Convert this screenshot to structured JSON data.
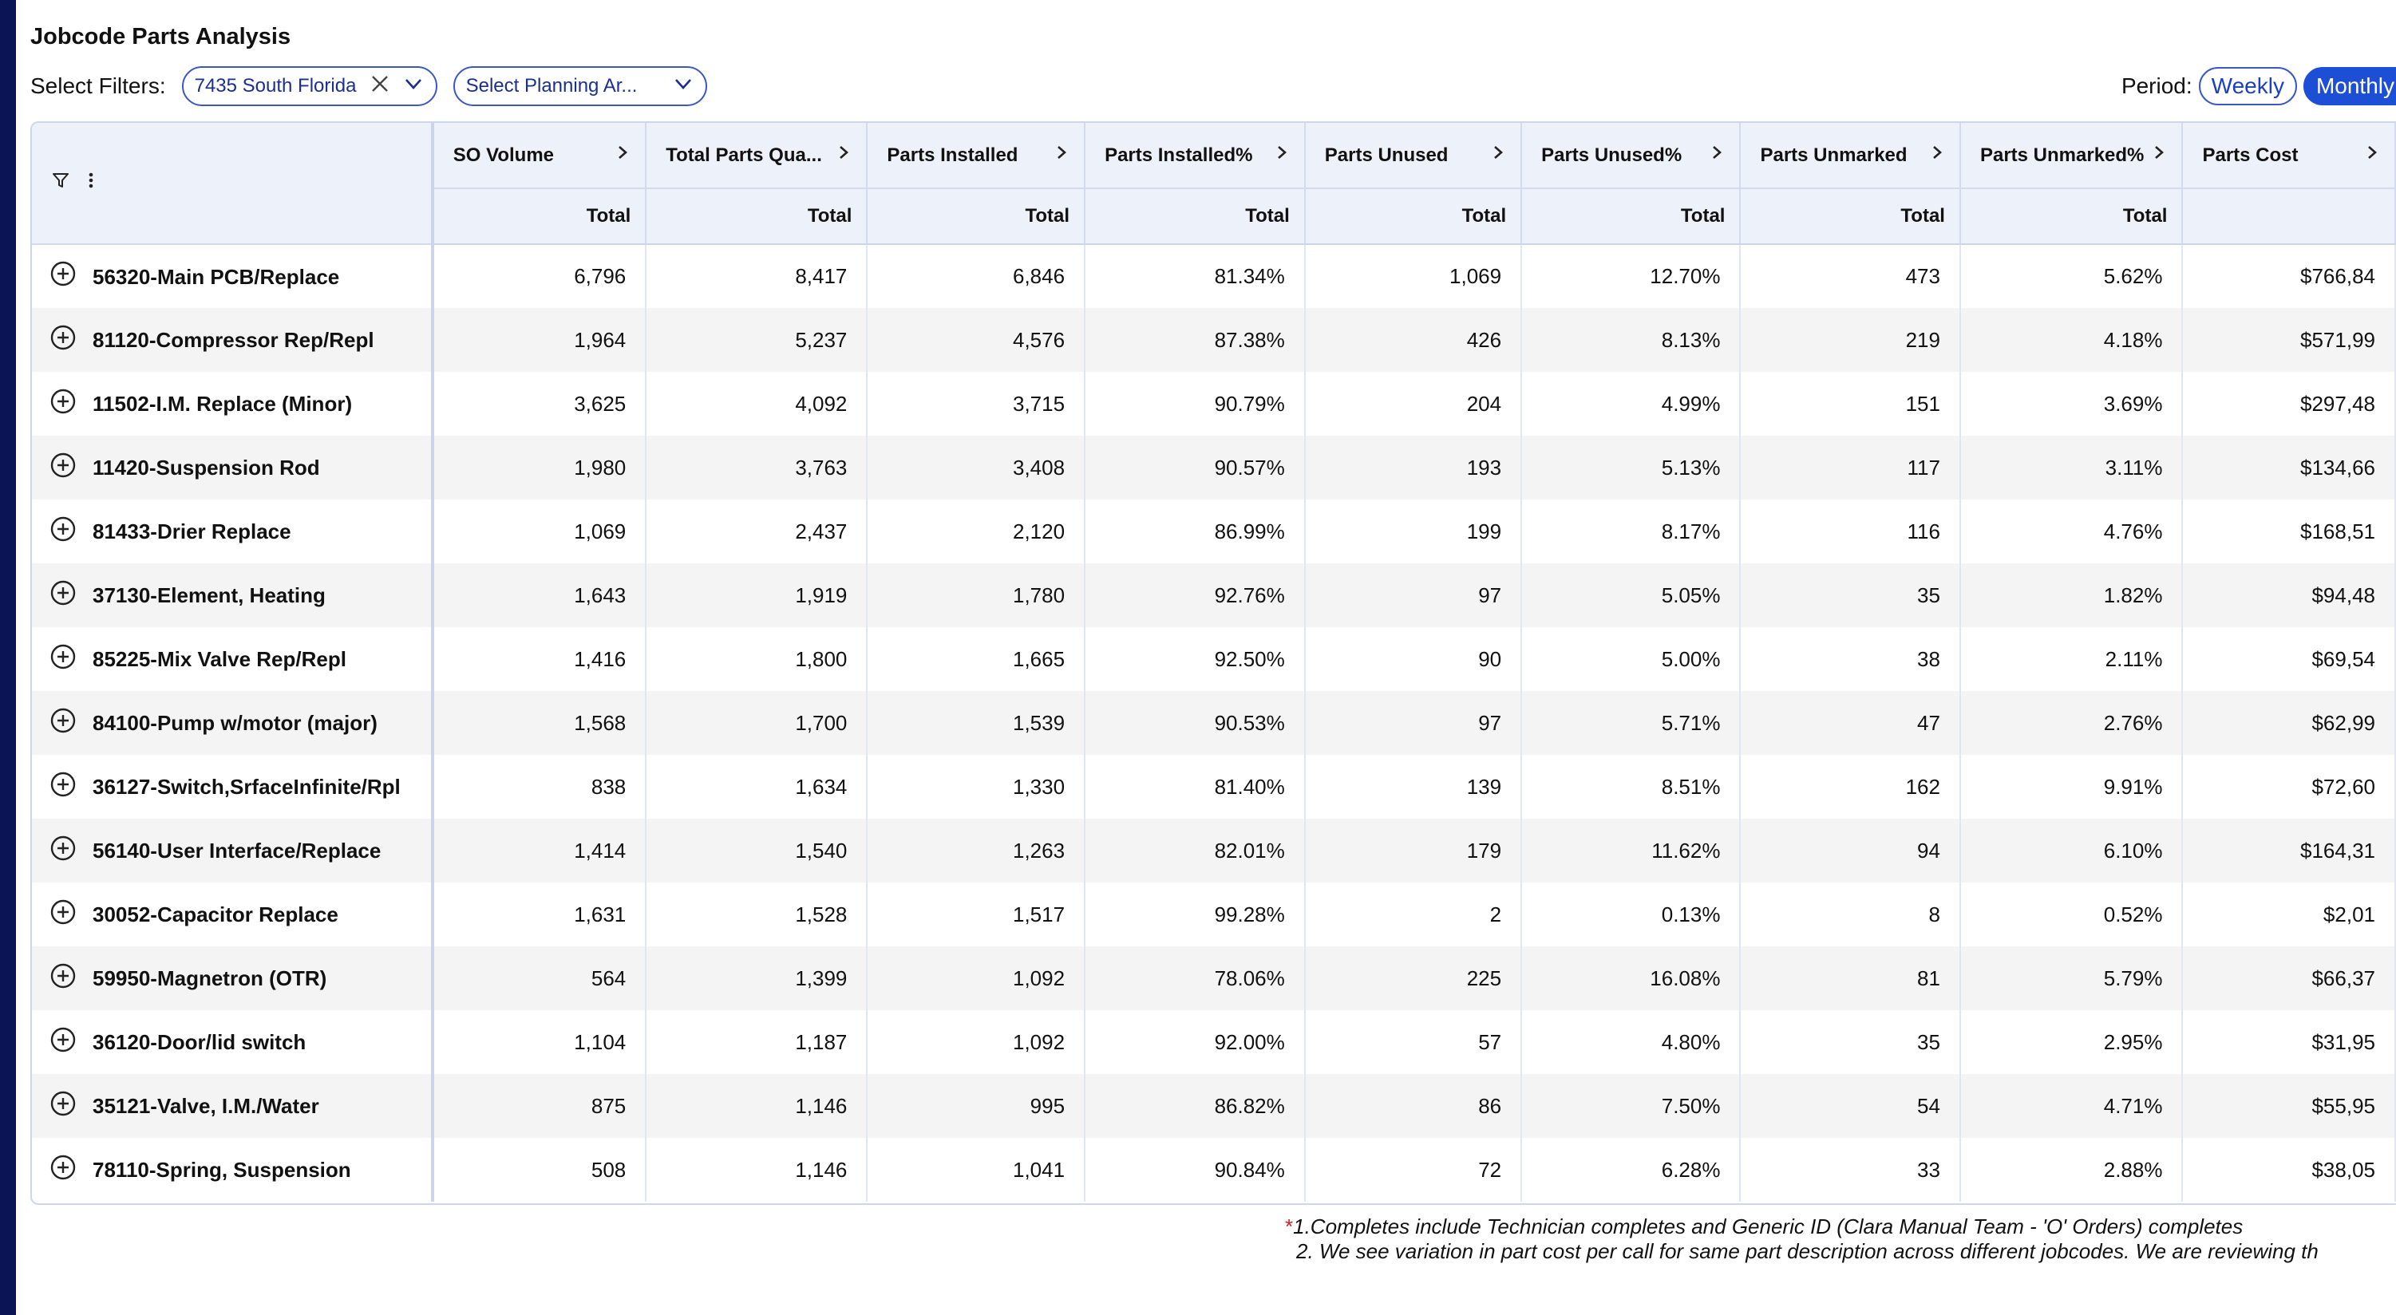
{
  "page": {
    "title": "Jobcode Parts Analysis"
  },
  "filters": {
    "label": "Select Filters:",
    "location": {
      "value": "7435 South Florida"
    },
    "planning_area": {
      "placeholder": "Select Planning Ar..."
    }
  },
  "period": {
    "label": "Period:",
    "options": [
      "Weekly",
      "Monthly"
    ],
    "selected": "Monthly"
  },
  "table": {
    "columns": [
      {
        "label": "SO Volume",
        "sub": "Total"
      },
      {
        "label": "Total Parts Qua...",
        "sub": "Total"
      },
      {
        "label": "Parts Installed",
        "sub": "Total"
      },
      {
        "label": "Parts Installed%",
        "sub": "Total"
      },
      {
        "label": "Parts Unused",
        "sub": "Total"
      },
      {
        "label": "Parts Unused%",
        "sub": "Total"
      },
      {
        "label": "Parts Unmarked",
        "sub": "Total"
      },
      {
        "label": "Parts Unmarked%",
        "sub": "Total"
      },
      {
        "label": "Parts Cost",
        "sub": ""
      }
    ],
    "rows": [
      {
        "jobcode": "56320-Main PCB/Replace",
        "values": [
          "6,796",
          "8,417",
          "6,846",
          "81.34%",
          "1,069",
          "12.70%",
          "473",
          "5.62%",
          "$766,84"
        ]
      },
      {
        "jobcode": "81120-Compressor Rep/Repl",
        "values": [
          "1,964",
          "5,237",
          "4,576",
          "87.38%",
          "426",
          "8.13%",
          "219",
          "4.18%",
          "$571,99"
        ]
      },
      {
        "jobcode": "11502-I.M. Replace (Minor)",
        "values": [
          "3,625",
          "4,092",
          "3,715",
          "90.79%",
          "204",
          "4.99%",
          "151",
          "3.69%",
          "$297,48"
        ]
      },
      {
        "jobcode": "11420-Suspension Rod",
        "values": [
          "1,980",
          "3,763",
          "3,408",
          "90.57%",
          "193",
          "5.13%",
          "117",
          "3.11%",
          "$134,66"
        ]
      },
      {
        "jobcode": "81433-Drier Replace",
        "values": [
          "1,069",
          "2,437",
          "2,120",
          "86.99%",
          "199",
          "8.17%",
          "116",
          "4.76%",
          "$168,51"
        ]
      },
      {
        "jobcode": "37130-Element, Heating",
        "values": [
          "1,643",
          "1,919",
          "1,780",
          "92.76%",
          "97",
          "5.05%",
          "35",
          "1.82%",
          "$94,48"
        ]
      },
      {
        "jobcode": "85225-Mix Valve Rep/Repl",
        "values": [
          "1,416",
          "1,800",
          "1,665",
          "92.50%",
          "90",
          "5.00%",
          "38",
          "2.11%",
          "$69,54"
        ]
      },
      {
        "jobcode": "84100-Pump w/motor (major)",
        "values": [
          "1,568",
          "1,700",
          "1,539",
          "90.53%",
          "97",
          "5.71%",
          "47",
          "2.76%",
          "$62,99"
        ]
      },
      {
        "jobcode": "36127-Switch,SrfaceInfinite/Rpl",
        "values": [
          "838",
          "1,634",
          "1,330",
          "81.40%",
          "139",
          "8.51%",
          "162",
          "9.91%",
          "$72,60"
        ]
      },
      {
        "jobcode": "56140-User Interface/Replace",
        "values": [
          "1,414",
          "1,540",
          "1,263",
          "82.01%",
          "179",
          "11.62%",
          "94",
          "6.10%",
          "$164,31"
        ]
      },
      {
        "jobcode": "30052-Capacitor Replace",
        "values": [
          "1,631",
          "1,528",
          "1,517",
          "99.28%",
          "2",
          "0.13%",
          "8",
          "0.52%",
          "$2,01"
        ]
      },
      {
        "jobcode": "59950-Magnetron (OTR)",
        "values": [
          "564",
          "1,399",
          "1,092",
          "78.06%",
          "225",
          "16.08%",
          "81",
          "5.79%",
          "$66,37"
        ]
      },
      {
        "jobcode": "36120-Door/lid switch",
        "values": [
          "1,104",
          "1,187",
          "1,092",
          "92.00%",
          "57",
          "4.80%",
          "35",
          "2.95%",
          "$31,95"
        ]
      },
      {
        "jobcode": "35121-Valve, I.M./Water",
        "values": [
          "875",
          "1,146",
          "995",
          "86.82%",
          "86",
          "7.50%",
          "54",
          "4.71%",
          "$55,95"
        ]
      },
      {
        "jobcode": "78110-Spring, Suspension",
        "values": [
          "508",
          "1,146",
          "1,041",
          "90.84%",
          "72",
          "6.28%",
          "33",
          "2.88%",
          "$38,05"
        ]
      }
    ]
  },
  "footnotes": {
    "marker": "*",
    "line1": "1.Completes include Technician completes and Generic ID (Clara Manual Team - 'O' Orders) completes",
    "line2": "2. We see variation in part cost per call for same part description across different jobcodes. We are reviewing th"
  },
  "icons": {
    "filter": "filter-icon",
    "more": "more-vertical-icon",
    "clear": "close-icon",
    "dropdown": "chevron-down-icon",
    "sort": "chevron-right-icon",
    "expand": "plus-circle-icon"
  },
  "colors": {
    "accent": "#1d4fd6",
    "header_bg": "#edf2fa",
    "sidebar": "#0b1454",
    "footnote_marker": "#d21f1f"
  }
}
